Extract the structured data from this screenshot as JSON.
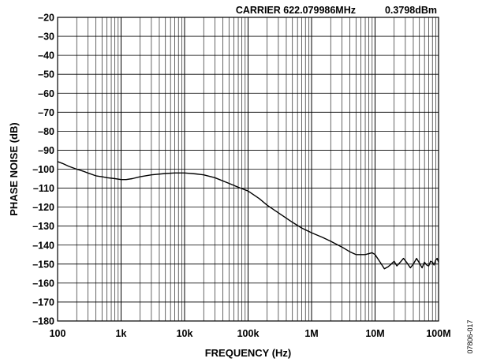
{
  "chart_data": {
    "type": "line",
    "title": "",
    "xlabel": "FREQUENCY (Hz)",
    "ylabel": "PHASE NOISE (dB)",
    "x_scale": "log",
    "xlim": [
      100,
      100000000
    ],
    "ylim": [
      -180,
      -20
    ],
    "x_ticks": [
      100,
      1000,
      10000,
      100000,
      1000000,
      10000000,
      100000000
    ],
    "x_tick_labels": [
      "100",
      "1k",
      "10k",
      "100k",
      "1M",
      "10M",
      "100M"
    ],
    "y_ticks": [
      -20,
      -30,
      -40,
      -50,
      -60,
      -70,
      -80,
      -90,
      -100,
      -110,
      -120,
      -130,
      -140,
      -150,
      -160,
      -170,
      -180
    ],
    "y_tick_labels": [
      "–20",
      "–30",
      "–40",
      "–50",
      "–60",
      "–70",
      "–80",
      "–90",
      "–100",
      "–110",
      "–120",
      "–130",
      "–140",
      "–150",
      "–160",
      "–170",
      "–180"
    ],
    "grid": true,
    "annotations": [
      "CARRIER 622.079986MHz",
      "0.3798dBm"
    ],
    "figure_id": "07806-017",
    "series": [
      {
        "color": "#000000",
        "x": [
          100,
          120,
          150,
          200,
          250,
          300,
          400,
          500,
          600,
          800,
          1000,
          1200,
          1500,
          2000,
          3000,
          5000,
          7000,
          10000,
          15000,
          20000,
          30000,
          50000,
          70000,
          100000,
          150000,
          200000,
          300000,
          500000,
          700000,
          1000000,
          1500000,
          2000000,
          3000000,
          4000000,
          5000000,
          6000000,
          7000000,
          8000000,
          9000000,
          10000000,
          12000000,
          14000000,
          16000000,
          18000000,
          20000000,
          22000000,
          25000000,
          28000000,
          32000000,
          36000000,
          40000000,
          45000000,
          50000000,
          55000000,
          60000000,
          65000000,
          70000000,
          75000000,
          80000000,
          85000000,
          90000000,
          95000000,
          100000000
        ],
        "y": [
          -96,
          -97,
          -98.5,
          -100,
          -101,
          -102,
          -103.5,
          -104,
          -104.5,
          -105,
          -105.5,
          -105.5,
          -105,
          -104,
          -103,
          -102.3,
          -102,
          -102,
          -102.5,
          -103,
          -104.5,
          -107.5,
          -109.5,
          -111.5,
          -115.5,
          -119,
          -123,
          -128,
          -131,
          -133.5,
          -136,
          -138,
          -141,
          -143.5,
          -145,
          -145,
          -145,
          -144.5,
          -144,
          -145,
          -149,
          -152.5,
          -151.5,
          -150,
          -148.5,
          -151,
          -149,
          -147,
          -149.5,
          -152,
          -150,
          -147,
          -149.5,
          -152,
          -149,
          -150.5,
          -151,
          -148.5,
          -149,
          -150.5,
          -148,
          -147,
          -149
        ]
      }
    ]
  }
}
